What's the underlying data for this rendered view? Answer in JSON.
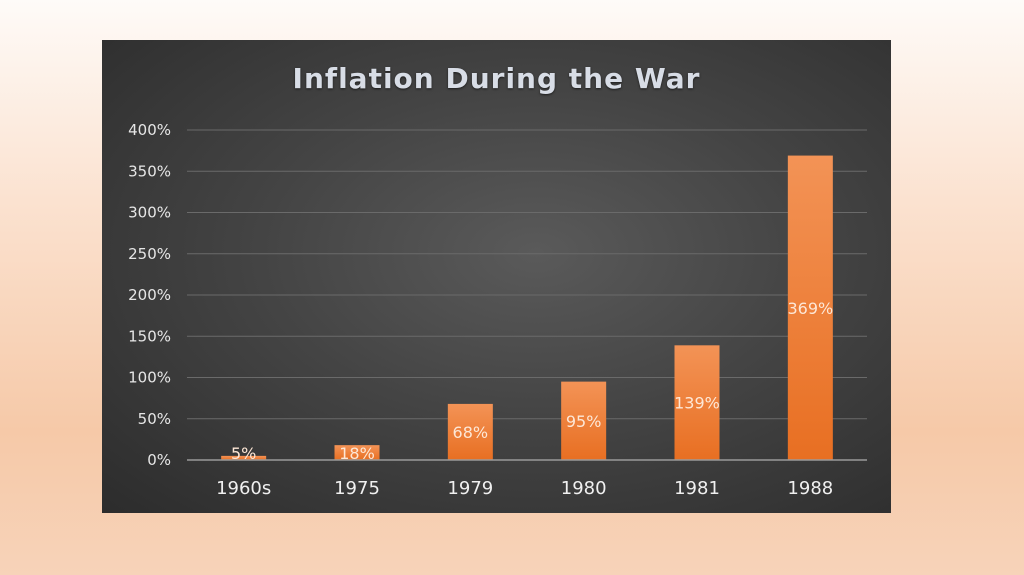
{
  "chart_data": {
    "type": "bar",
    "title": "Inflation During the War",
    "categories": [
      "1960s",
      "1975",
      "1979",
      "1980",
      "1981",
      "1988"
    ],
    "values": [
      5,
      18,
      68,
      95,
      139,
      369
    ],
    "data_labels": [
      "5%",
      "18%",
      "68%",
      "95%",
      "139%",
      "369%"
    ],
    "y_ticks": [
      "0%",
      "50%",
      "100%",
      "150%",
      "200%",
      "250%",
      "300%",
      "350%",
      "400%"
    ],
    "ylim": [
      0,
      400
    ],
    "xlabel": "",
    "ylabel": "",
    "grid": true,
    "legend": "none",
    "colors": {
      "bar_top": "#f39356",
      "bar_bottom": "#e86f22",
      "gridline": "#6a6a6a",
      "axis": "#9a9a9a",
      "panel": "#404040"
    }
  }
}
